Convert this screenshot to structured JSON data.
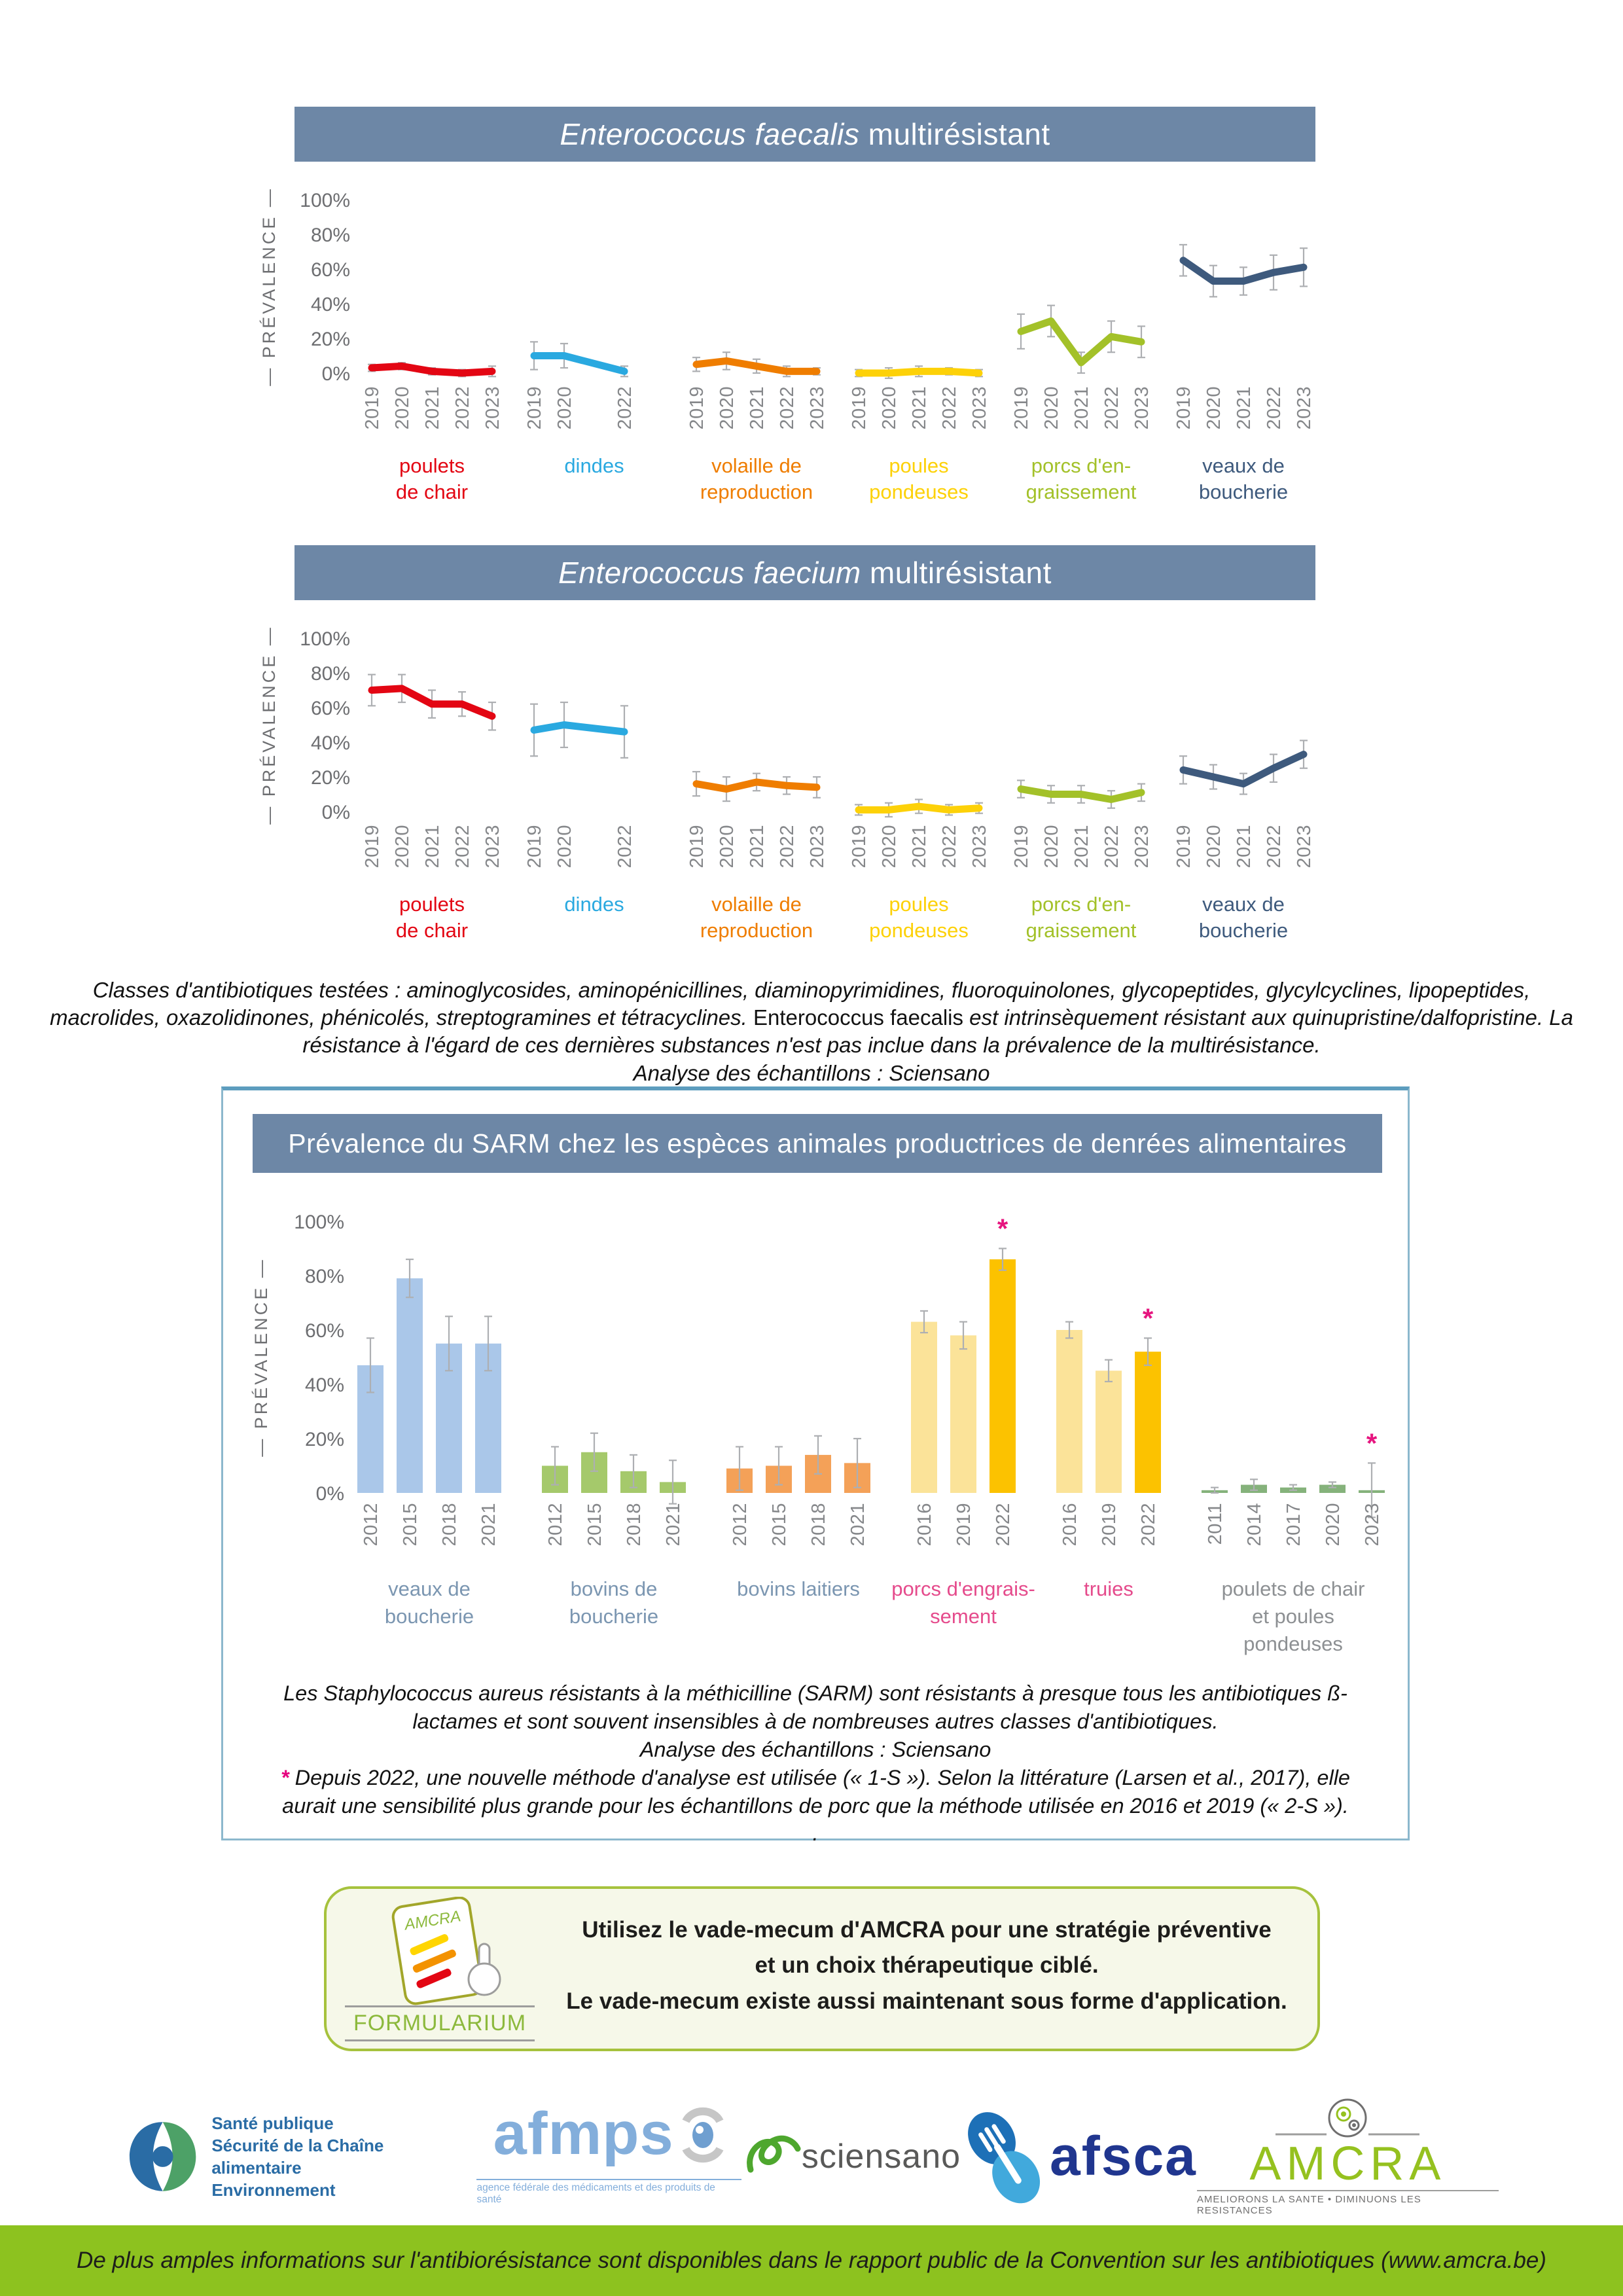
{
  "texts": {
    "banner1_italic": "Enterococcus faecalis",
    "banner1_rest": " multirésistant",
    "banner2_italic": "Enterococcus faecium",
    "banner2_rest": " multirésistant",
    "note1_seg1": "Classes d'antibiotiques testées : aminoglycosides, aminopénicillines, diaminopyrimidines, fluoroquinolones, glycopeptides, glycylcyclines, lipopeptides, macrolides, oxazolidinones, phénicolés, streptogramines et tétracyclines. ",
    "note1_seg2": "Enterococcus faecalis",
    "note1_seg3": " est intrinsèquement résistant aux quinupristine/dalfopristine. La résistance à l'égard de ces dernières substances n'est pas inclue dans la prévalence de la multirésistance.",
    "note1_seg4": "Analyse des échantillons : Sciensano",
    "sarm_title": "Prévalence du SARM chez les espèces animales productrices de denrées alimentaires",
    "sarm_p1": "Les Staphylococcus aureus résistants à la méthicilline (SARM) sont résistants à presque tous les antibiotiques ß-lactames et sont souvent insensibles à de nombreuses autres classes d'antibiotiques.",
    "sarm_p2": "Analyse des échantillons : Sciensano",
    "sarm_star": "*",
    "sarm_p3": " Depuis 2022, une nouvelle méthode d'analyse est utilisée (« 1-S »). Selon la littérature (Larsen et al., 2017), elle aurait une sensibilité plus grande pour les échantillons de porc que la méthode utilisée en 2016 et 2019 (« 2-S »).",
    "sarm_p4": ".",
    "formularium_label": "FORMULARIUM",
    "formularium_line1": "Utilisez le vade-mecum d'AMCRA pour une stratégie préventive",
    "formularium_line2": "et un choix thérapeutique ciblé.",
    "formularium_line3": "Le vade-mecum existe aussi maintenant sous forme d'application.",
    "footer": "De plus amples informations sur l'antibiorésistance sont disponibles dans le rapport public de la Convention sur les antibiotiques (www.amcra.be)",
    "logo_sante_lines": [
      "Santé publique",
      "Sécurité de la Chaîne alimentaire",
      "Environnement"
    ],
    "logo_afmps_word": "afmps",
    "logo_afmps_tagline": "agence fédérale des médicaments et des produits de santé",
    "logo_sciensano_word": "sciensano",
    "logo_afsca_word": "afsca",
    "logo_amcra_word": "AMCRA",
    "logo_amcra_tagline": "AMELIORONS LA SANTE • DIMINUONS LES RESISTANCES"
  },
  "chart_data": [
    {
      "type": "line",
      "title": "Enterococcus faecalis multirésistant",
      "ylabel": "— PRÉVALENCE —",
      "ylim": [
        0,
        100
      ],
      "yticks": [
        100,
        80,
        60,
        40,
        20,
        0
      ],
      "year_grid": [
        "2019",
        "2020",
        "2021",
        "2022",
        "2023"
      ],
      "series": [
        {
          "name": "poulets de chair",
          "label_lines": [
            "poulets",
            "de chair"
          ],
          "color": "#e30613",
          "slots": [
            0,
            1,
            2,
            3,
            4
          ],
          "years": [
            "2019",
            "2020",
            "2021",
            "2022",
            "2023"
          ],
          "values": [
            3,
            4,
            1,
            0,
            1
          ],
          "err": [
            2,
            2,
            2,
            2,
            3
          ]
        },
        {
          "name": "dindes",
          "label_lines": [
            "dindes"
          ],
          "color": "#2aa9e0",
          "slots": [
            0,
            1,
            3
          ],
          "years": [
            "2019",
            "2020",
            "2022"
          ],
          "values": [
            10,
            10,
            1
          ],
          "err": [
            8,
            7,
            3
          ]
        },
        {
          "name": "volaille de reproduction",
          "label_lines": [
            "volaille de",
            "reproduction"
          ],
          "color": "#ef7d00",
          "slots": [
            0,
            1,
            2,
            3,
            4
          ],
          "years": [
            "2019",
            "2020",
            "2021",
            "2022",
            "2023"
          ],
          "values": [
            5,
            7,
            4,
            1,
            1
          ],
          "err": [
            4,
            5,
            4,
            3,
            2
          ]
        },
        {
          "name": "poules pondeuses",
          "label_lines": [
            "poules",
            "pondeuses"
          ],
          "color": "#fdd108",
          "slots": [
            0,
            1,
            2,
            3,
            4
          ],
          "years": [
            "2019",
            "2020",
            "2021",
            "2022",
            "2023"
          ],
          "values": [
            0,
            0,
            1,
            1,
            0
          ],
          "err": [
            2,
            3,
            3,
            2,
            2
          ]
        },
        {
          "name": "porcs d'engraissement",
          "label_lines": [
            "porcs d'en-",
            "graissement"
          ],
          "color": "#a3c129",
          "slots": [
            0,
            1,
            2,
            3,
            4
          ],
          "years": [
            "2019",
            "2020",
            "2021",
            "2022",
            "2023"
          ],
          "values": [
            24,
            30,
            6,
            21,
            18
          ],
          "err": [
            10,
            9,
            6,
            9,
            9
          ]
        },
        {
          "name": "veaux de boucherie",
          "label_lines": [
            "veaux de",
            "boucherie"
          ],
          "color": "#3e5a7d",
          "slots": [
            0,
            1,
            2,
            3,
            4
          ],
          "years": [
            "2019",
            "2020",
            "2021",
            "2022",
            "2023"
          ],
          "values": [
            65,
            53,
            53,
            58,
            61
          ],
          "err": [
            9,
            9,
            8,
            10,
            11
          ]
        }
      ]
    },
    {
      "type": "line",
      "title": "Enterococcus faecium multirésistant",
      "ylabel": "— PRÉVALENCE —",
      "ylim": [
        0,
        100
      ],
      "yticks": [
        100,
        80,
        60,
        40,
        20,
        0
      ],
      "year_grid": [
        "2019",
        "2020",
        "2021",
        "2022",
        "2023"
      ],
      "series": [
        {
          "name": "poulets de chair",
          "label_lines": [
            "poulets",
            "de chair"
          ],
          "color": "#e30613",
          "slots": [
            0,
            1,
            2,
            3,
            4
          ],
          "years": [
            "2019",
            "2020",
            "2021",
            "2022",
            "2023"
          ],
          "values": [
            70,
            71,
            62,
            62,
            55
          ],
          "err": [
            9,
            8,
            8,
            7,
            8
          ]
        },
        {
          "name": "dindes",
          "label_lines": [
            "dindes"
          ],
          "color": "#2aa9e0",
          "slots": [
            0,
            1,
            3
          ],
          "years": [
            "2019",
            "2020",
            "2022"
          ],
          "values": [
            47,
            50,
            46
          ],
          "err": [
            15,
            13,
            15
          ]
        },
        {
          "name": "volaille de reproduction",
          "label_lines": [
            "volaille de",
            "reproduction"
          ],
          "color": "#ef7d00",
          "slots": [
            0,
            1,
            2,
            3,
            4
          ],
          "years": [
            "2019",
            "2020",
            "2021",
            "2022",
            "2023"
          ],
          "values": [
            16,
            13,
            17,
            15,
            14
          ],
          "err": [
            7,
            7,
            5,
            5,
            6
          ]
        },
        {
          "name": "poules pondeuses",
          "label_lines": [
            "poules",
            "pondeuses"
          ],
          "color": "#fdd108",
          "slots": [
            0,
            1,
            2,
            3,
            4
          ],
          "years": [
            "2019",
            "2020",
            "2021",
            "2022",
            "2023"
          ],
          "values": [
            1,
            1,
            3,
            1,
            2
          ],
          "err": [
            3,
            4,
            4,
            3,
            3
          ]
        },
        {
          "name": "porcs d'engraissement",
          "label_lines": [
            "porcs d'en-",
            "graissement"
          ],
          "color": "#a3c129",
          "slots": [
            0,
            1,
            2,
            3,
            4
          ],
          "years": [
            "2019",
            "2020",
            "2021",
            "2022",
            "2023"
          ],
          "values": [
            13,
            10,
            10,
            7,
            11
          ],
          "err": [
            5,
            5,
            5,
            5,
            5
          ]
        },
        {
          "name": "veaux de boucherie",
          "label_lines": [
            "veaux de",
            "boucherie"
          ],
          "color": "#3e5a7d",
          "slots": [
            0,
            1,
            2,
            3,
            4
          ],
          "years": [
            "2019",
            "2020",
            "2021",
            "2022",
            "2023"
          ],
          "values": [
            24,
            20,
            16,
            25,
            33
          ],
          "err": [
            8,
            7,
            6,
            8,
            8
          ]
        }
      ]
    },
    {
      "type": "bar",
      "title": "Prévalence du SARM chez les espèces animales productrices de denrées alimentaires",
      "ylabel": "— PRÉVALENCE —",
      "ylim": [
        0,
        100
      ],
      "yticks": [
        100,
        80,
        60,
        40,
        20,
        0
      ],
      "groups": [
        {
          "name": "veaux de boucherie",
          "label_lines": [
            "veaux de",
            "boucherie"
          ],
          "label_color": "#7b96b1",
          "years": [
            "2012",
            "2015",
            "2018",
            "2021"
          ],
          "values": [
            47,
            79,
            55,
            55
          ],
          "err": [
            10,
            7,
            10,
            10
          ],
          "colors": [
            "#aac7e9",
            "#aac7e9",
            "#aac7e9",
            "#aac7e9"
          ],
          "asterisk": [
            false,
            false,
            false,
            false
          ]
        },
        {
          "name": "bovins de boucherie",
          "label_lines": [
            "bovins de",
            "boucherie"
          ],
          "label_color": "#7b96b1",
          "years": [
            "2012",
            "2015",
            "2018",
            "2021"
          ],
          "values": [
            10,
            15,
            8,
            4
          ],
          "err": [
            7,
            7,
            6,
            8
          ],
          "colors": [
            "#a5c96b",
            "#a5c96b",
            "#a5c96b",
            "#a5c96b"
          ],
          "asterisk": [
            false,
            false,
            false,
            false
          ]
        },
        {
          "name": "bovins laitiers",
          "label_lines": [
            "bovins laitiers"
          ],
          "label_color": "#7b96b1",
          "years": [
            "2012",
            "2015",
            "2018",
            "2021"
          ],
          "values": [
            9,
            10,
            14,
            11
          ],
          "err": [
            8,
            7,
            7,
            9
          ],
          "colors": [
            "#f4a158",
            "#f4a158",
            "#f4a158",
            "#f4a158"
          ],
          "asterisk": [
            false,
            false,
            false,
            false
          ]
        },
        {
          "name": "porcs d'engraissement",
          "label_lines": [
            "porcs d'engrais-",
            "sement"
          ],
          "label_color": "#e54b8c",
          "years": [
            "2016",
            "2019",
            "2022"
          ],
          "values": [
            63,
            58,
            86
          ],
          "err": [
            4,
            5,
            4
          ],
          "colors": [
            "#fbe399",
            "#fbe399",
            "#fcc200"
          ],
          "asterisk": [
            false,
            false,
            true
          ]
        },
        {
          "name": "truies",
          "label_lines": [
            "truies"
          ],
          "label_color": "#e54b8c",
          "years": [
            "2016",
            "2019",
            "2022"
          ],
          "values": [
            60,
            45,
            52
          ],
          "err": [
            3,
            4,
            5
          ],
          "colors": [
            "#fbe399",
            "#fbe399",
            "#fcc200"
          ],
          "asterisk": [
            false,
            false,
            true
          ]
        },
        {
          "name": "poulets de chair et poules pondeuses",
          "label_lines": [
            "poulets de chair",
            "et poules",
            "pondeuses"
          ],
          "label_color": "#8d9093",
          "years": [
            "2011",
            "2014",
            "2017",
            "2020",
            "2023"
          ],
          "values": [
            1,
            3,
            2,
            3,
            1
          ],
          "err": [
            1,
            2,
            1,
            1,
            10
          ],
          "colors": [
            "#85b27b",
            "#85b27b",
            "#85b27b",
            "#85b27b",
            "#85b27b"
          ],
          "asterisk": [
            false,
            false,
            false,
            false,
            true
          ]
        }
      ]
    }
  ],
  "colors": {
    "banner": "#6d87a6",
    "footer_bar": "#8dc21f",
    "asterisk": "#e6007e",
    "error_bar": "#adafb2",
    "box_border": "#8cb8cd"
  }
}
